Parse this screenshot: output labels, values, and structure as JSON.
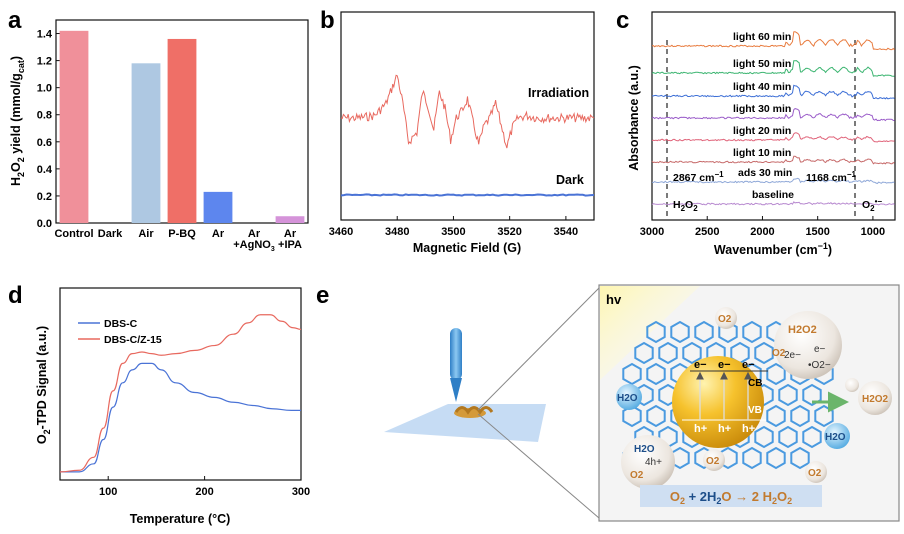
{
  "panels": {
    "a": {
      "label": "a"
    },
    "b": {
      "label": "b"
    },
    "c": {
      "label": "c"
    },
    "d": {
      "label": "d"
    },
    "e": {
      "label": "e"
    }
  },
  "chart_data": [
    {
      "id": "a",
      "type": "bar",
      "title": "",
      "ylabel": "H2O2 yield (mmol/gcat)",
      "ylabel_parts": {
        "main1": "H",
        "sub1": "2",
        "main2": "O",
        "sub2": "2",
        "main3": " yield (mmol/g",
        "sub3": "cat",
        "main4": ")"
      },
      "xlabel": "",
      "ylim": [
        0,
        1.5
      ],
      "yticks": [
        "0.0",
        "0.2",
        "0.4",
        "0.6",
        "0.8",
        "1.0",
        "1.2",
        "1.4"
      ],
      "categories": [
        "Control",
        "Dark",
        "Air",
        "P-BQ",
        "Ar",
        "Ar +AgNO3",
        "Ar +IPA"
      ],
      "category_labels": [
        {
          "l1": "Control"
        },
        {
          "l1": "Dark"
        },
        {
          "l1": "Air"
        },
        {
          "l1": "P-BQ"
        },
        {
          "l1": "Ar"
        },
        {
          "l1": "Ar",
          "l2a": "+AgNO",
          "l2sub": "3"
        },
        {
          "l1": "Ar",
          "l2a": "+IPA"
        }
      ],
      "values": [
        1.42,
        0,
        1.18,
        1.36,
        0.23,
        0,
        0.05
      ],
      "colors": [
        "#f0909a",
        "#ffffff",
        "#aec8e2",
        "#ef6f67",
        "#5d86ee",
        "#ffffff",
        "#d593d9"
      ]
    },
    {
      "id": "b",
      "type": "line",
      "xlabel": "Magnetic Field (G)",
      "ylabel": "",
      "xlim": [
        3460,
        3550
      ],
      "xticks": [
        3460,
        3480,
        3500,
        3520,
        3540
      ],
      "series": [
        {
          "name": "Irradiation",
          "color": "#e8695f",
          "x": [
            3460,
            3466,
            3472,
            3476,
            3480,
            3482,
            3484,
            3487,
            3489,
            3491,
            3493,
            3495,
            3497,
            3499,
            3501,
            3503,
            3505,
            3507,
            3509,
            3511,
            3513,
            3515,
            3517,
            3519,
            3521,
            3523,
            3526,
            3530,
            3540,
            3550
          ],
          "y": [
            1.0,
            1.0,
            1.05,
            1.3,
            1.9,
            1.3,
            0.5,
            0.7,
            1.55,
            1.25,
            0.75,
            1.55,
            1.2,
            0.55,
            1.0,
            1.15,
            1.4,
            0.9,
            0.45,
            0.85,
            1.0,
            1.3,
            0.85,
            0.4,
            0.8,
            1.0,
            1.05,
            1.0,
            1.0,
            1.0
          ]
        },
        {
          "name": "Dark",
          "color": "#4a73d6",
          "x": [
            3460,
            3550
          ],
          "y": [
            0.0,
            0.0
          ]
        }
      ]
    },
    {
      "id": "c",
      "type": "line",
      "xlabel": "Wavenumber (cm−1)",
      "xlabel_parts": {
        "main": "Wavenumber (cm",
        "sup": "−1",
        "end": ")"
      },
      "ylabel": "Absorbance (a.u.)",
      "xlim": [
        3000,
        800
      ],
      "xticks": [
        3000,
        2500,
        2000,
        1500,
        1000
      ],
      "series": [
        {
          "name": "light 60 min",
          "color": "#e87b3e"
        },
        {
          "name": "light 50 min",
          "color": "#3cb571"
        },
        {
          "name": "light 40 min",
          "color": "#3d6fd6"
        },
        {
          "name": "light 30 min",
          "color": "#9a5cc9"
        },
        {
          "name": "light 20 min",
          "color": "#e0647a"
        },
        {
          "name": "light 10 min",
          "color": "#c76b6b"
        },
        {
          "name": "ads 30 min",
          "color": "#8fa8d8"
        },
        {
          "name": "baseline",
          "color": "#b88ad0"
        }
      ],
      "annotations": {
        "left_peak": "2867 cm−1",
        "left_peak_parts": {
          "main": "2867 cm",
          "sup": "−1"
        },
        "right_peak": "1168 cm−1",
        "right_peak_parts": {
          "main": "1168 cm",
          "sup": "−1"
        },
        "h2o2": "H2O2",
        "h2o2_parts": {
          "a": "H",
          "b": "2",
          "c": "O",
          "d": "2"
        },
        "o2": "O2•−",
        "o2_parts": {
          "a": "O",
          "b": "2",
          "c": "•−"
        }
      }
    },
    {
      "id": "d",
      "type": "line",
      "xlabel": "Temperature (°C)",
      "ylabel": "O2-TPD Signal (a.u.)",
      "ylabel_parts": {
        "a": "O",
        "b": "2",
        "c": "-TPD Signal (a.u.)"
      },
      "xlim": [
        50,
        300
      ],
      "xticks": [
        100,
        200,
        300
      ],
      "series": [
        {
          "name": "DBS-C",
          "color": "#4a73d6",
          "x": [
            50,
            70,
            85,
            95,
            105,
            115,
            125,
            135,
            145,
            155,
            170,
            190,
            210,
            230,
            250,
            270,
            290,
            300
          ],
          "y": [
            0.05,
            0.05,
            0.1,
            0.25,
            0.45,
            0.6,
            0.68,
            0.72,
            0.72,
            0.68,
            0.6,
            0.54,
            0.51,
            0.48,
            0.46,
            0.44,
            0.43,
            0.43
          ]
        },
        {
          "name": "DBS-C/Z-15",
          "color": "#e8695f",
          "x": [
            50,
            70,
            85,
            95,
            105,
            115,
            125,
            135,
            145,
            155,
            170,
            190,
            210,
            230,
            245,
            258,
            268,
            280,
            292,
            300
          ],
          "y": [
            0.05,
            0.06,
            0.14,
            0.32,
            0.55,
            0.72,
            0.78,
            0.79,
            0.78,
            0.77,
            0.78,
            0.8,
            0.83,
            0.9,
            0.97,
            1.02,
            1.02,
            0.98,
            0.94,
            0.93
          ]
        }
      ]
    }
  ],
  "schematic": {
    "hv": "hv",
    "cb": "CB",
    "vb": "VB",
    "electron": "e−",
    "hole": "h+",
    "o2": "O2",
    "h2o": "H2O",
    "h2o2": "H2O2",
    "two_e": "2e−",
    "four_h": "4h+",
    "e_minus": "e−",
    "o2_radical": "•O2−",
    "equation": {
      "p1": "O",
      "s1": "2",
      "p2": " + 2H",
      "s2": "2",
      "p3": "O → 2 H",
      "s3": "2",
      "p4": "O",
      "s4": "2"
    }
  }
}
